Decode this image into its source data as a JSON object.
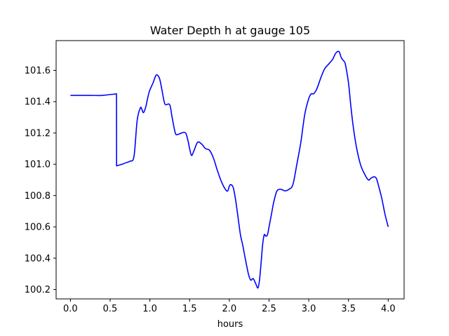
{
  "chart_data": {
    "type": "line",
    "title": "Water Depth h at gauge 105",
    "xlabel": "hours",
    "ylabel": "",
    "xlim": [
      -0.18,
      4.2
    ],
    "ylim": [
      100.14,
      101.79
    ],
    "xticks": [
      0.0,
      0.5,
      1.0,
      1.5,
      2.0,
      2.5,
      3.0,
      3.5,
      4.0
    ],
    "xtick_labels": [
      "0.0",
      "0.5",
      "1.0",
      "1.5",
      "2.0",
      "2.5",
      "3.0",
      "3.5",
      "4.0"
    ],
    "yticks": [
      100.2,
      100.4,
      100.6,
      100.8,
      101.0,
      101.2,
      101.4,
      101.6
    ],
    "ytick_labels": [
      "100.2",
      "100.4",
      "100.6",
      "100.8",
      "101.0",
      "101.2",
      "101.4",
      "101.6"
    ],
    "grid": false,
    "series": [
      {
        "name": "",
        "color": "#0000ff",
        "x": [
          0.0,
          0.25,
          0.4,
          0.58,
          0.581,
          0.65,
          0.7,
          0.75,
          0.8,
          0.84,
          0.88,
          0.9,
          0.92,
          0.95,
          0.99,
          1.04,
          1.08,
          1.12,
          1.15,
          1.18,
          1.2,
          1.25,
          1.28,
          1.32,
          1.35,
          1.4,
          1.45,
          1.48,
          1.52,
          1.55,
          1.6,
          1.65,
          1.7,
          1.75,
          1.8,
          1.85,
          1.9,
          1.95,
          1.98,
          2.0,
          2.02,
          2.05,
          2.08,
          2.11,
          2.14,
          2.17,
          2.2,
          2.24,
          2.27,
          2.3,
          2.33,
          2.36,
          2.38,
          2.4,
          2.42,
          2.44,
          2.46,
          2.48,
          2.5,
          2.53,
          2.56,
          2.6,
          2.65,
          2.7,
          2.75,
          2.8,
          2.85,
          2.9,
          2.95,
          3.0,
          3.03,
          3.06,
          3.1,
          3.15,
          3.2,
          3.25,
          3.3,
          3.34,
          3.38,
          3.41,
          3.44,
          3.46,
          3.5,
          3.53,
          3.56,
          3.6,
          3.65,
          3.7,
          3.75,
          3.78,
          3.82,
          3.85,
          3.88,
          3.92,
          3.96,
          4.0
        ],
        "y": [
          101.44,
          101.44,
          101.44,
          101.45,
          100.99,
          101.0,
          101.01,
          101.02,
          101.05,
          101.28,
          101.36,
          101.35,
          101.33,
          101.37,
          101.46,
          101.52,
          101.57,
          101.55,
          101.48,
          101.4,
          101.38,
          101.38,
          101.3,
          101.2,
          101.19,
          101.2,
          101.2,
          101.15,
          101.06,
          101.08,
          101.14,
          101.13,
          101.1,
          101.09,
          101.04,
          100.96,
          100.89,
          100.84,
          100.83,
          100.86,
          100.87,
          100.85,
          100.77,
          100.66,
          100.55,
          100.48,
          100.4,
          100.3,
          100.26,
          100.27,
          100.24,
          100.21,
          100.26,
          100.37,
          100.49,
          100.55,
          100.54,
          100.55,
          100.6,
          100.68,
          100.76,
          100.83,
          100.84,
          100.83,
          100.84,
          100.87,
          101.0,
          101.14,
          101.32,
          101.42,
          101.45,
          101.45,
          101.48,
          101.55,
          101.61,
          101.64,
          101.67,
          101.71,
          101.72,
          101.68,
          101.66,
          101.64,
          101.52,
          101.37,
          101.24,
          101.11,
          101.0,
          100.94,
          100.9,
          100.91,
          100.92,
          100.91,
          100.86,
          100.78,
          100.68,
          100.6
        ]
      }
    ]
  }
}
